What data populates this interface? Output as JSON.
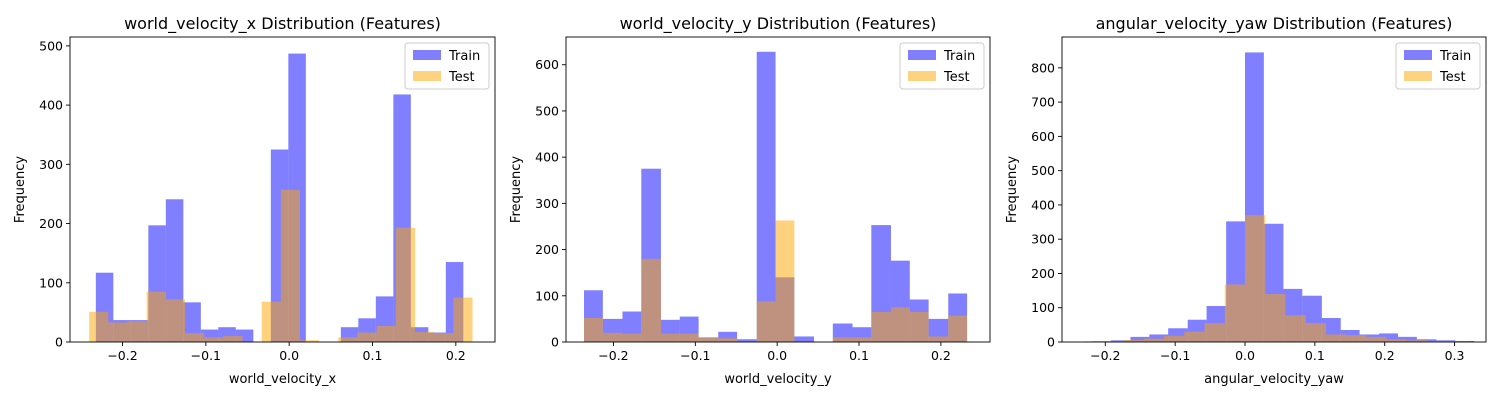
{
  "chart_data": [
    {
      "type": "histogram",
      "title": "world_velocity_x Distribution (Features)",
      "xlabel": "world_velocity_x",
      "ylabel": "Frequency",
      "xlim": [
        -0.263,
        0.247
      ],
      "ylim": [
        0,
        515
      ],
      "xticks": [
        -0.2,
        -0.1,
        0.0,
        0.1,
        0.2
      ],
      "yticks": [
        0,
        100,
        200,
        300,
        400,
        500
      ],
      "xtick_labels": [
        "−0.2",
        "−0.1",
        "0.0",
        "0.1",
        "0.2"
      ],
      "ytick_labels": [
        "0",
        "100",
        "200",
        "300",
        "400",
        "500"
      ],
      "legend_position": "top-right",
      "series": [
        {
          "name": "Train",
          "color": "#0000ff",
          "alpha": 0.5,
          "bins": [
            [
              -0.232,
              -0.211,
              117
            ],
            [
              -0.211,
              -0.19,
              37
            ],
            [
              -0.19,
              -0.169,
              37
            ],
            [
              -0.169,
              -0.148,
              197
            ],
            [
              -0.148,
              -0.127,
              241
            ],
            [
              -0.127,
              -0.106,
              67
            ],
            [
              -0.106,
              -0.085,
              21
            ],
            [
              -0.085,
              -0.064,
              25
            ],
            [
              -0.064,
              -0.043,
              21
            ],
            [
              -0.043,
              -0.022,
              0
            ],
            [
              -0.022,
              -0.001,
              325
            ],
            [
              -0.001,
              0.02,
              487
            ],
            [
              0.02,
              0.041,
              0
            ],
            [
              0.041,
              0.062,
              0
            ],
            [
              0.062,
              0.083,
              25
            ],
            [
              0.083,
              0.104,
              40
            ],
            [
              0.104,
              0.125,
              77
            ],
            [
              0.125,
              0.146,
              418
            ],
            [
              0.146,
              0.167,
              25
            ],
            [
              0.167,
              0.188,
              16
            ],
            [
              0.188,
              0.209,
              135
            ]
          ]
        },
        {
          "name": "Test",
          "color": "#ffa500",
          "alpha": 0.5,
          "bins": [
            [
              -0.24,
              -0.217,
              51
            ],
            [
              -0.217,
              -0.194,
              33
            ],
            [
              -0.194,
              -0.171,
              35
            ],
            [
              -0.171,
              -0.148,
              85
            ],
            [
              -0.148,
              -0.125,
              72
            ],
            [
              -0.125,
              -0.102,
              15
            ],
            [
              -0.102,
              -0.079,
              8
            ],
            [
              -0.079,
              -0.056,
              10
            ],
            [
              -0.056,
              -0.033,
              0
            ],
            [
              -0.033,
              -0.01,
              68
            ],
            [
              -0.01,
              0.013,
              257
            ],
            [
              0.013,
              0.036,
              3
            ],
            [
              0.036,
              0.059,
              0
            ],
            [
              0.059,
              0.082,
              8
            ],
            [
              0.082,
              0.105,
              16
            ],
            [
              0.105,
              0.128,
              27
            ],
            [
              0.128,
              0.151,
              193
            ],
            [
              0.151,
              0.174,
              17
            ],
            [
              0.174,
              0.197,
              15
            ],
            [
              0.197,
              0.22,
              75
            ]
          ]
        }
      ]
    },
    {
      "type": "histogram",
      "title": "world_velocity_y Distribution (Features)",
      "xlabel": "world_velocity_y",
      "ylabel": "Frequency",
      "xlim": [
        -0.258,
        0.26
      ],
      "ylim": [
        0,
        660
      ],
      "xticks": [
        -0.2,
        -0.1,
        0.0,
        0.1,
        0.2
      ],
      "yticks": [
        0,
        100,
        200,
        300,
        400,
        500,
        600
      ],
      "xtick_labels": [
        "−0.2",
        "−0.1",
        "0.0",
        "0.1",
        "0.2"
      ],
      "ytick_labels": [
        "0",
        "100",
        "200",
        "300",
        "400",
        "500",
        "600"
      ],
      "legend_position": "top-right",
      "series": [
        {
          "name": "Train",
          "color": "#0000ff",
          "alpha": 0.5,
          "bins": [
            [
              -0.236,
              -0.213,
              112
            ],
            [
              -0.213,
              -0.189,
              50
            ],
            [
              -0.189,
              -0.166,
              66
            ],
            [
              -0.166,
              -0.142,
              375
            ],
            [
              -0.142,
              -0.119,
              48
            ],
            [
              -0.119,
              -0.096,
              55
            ],
            [
              -0.096,
              -0.072,
              10
            ],
            [
              -0.072,
              -0.049,
              22
            ],
            [
              -0.049,
              -0.025,
              6
            ],
            [
              -0.025,
              -0.002,
              628
            ],
            [
              -0.002,
              0.021,
              140
            ],
            [
              0.021,
              0.045,
              12
            ],
            [
              0.045,
              0.068,
              0
            ],
            [
              0.068,
              0.092,
              40
            ],
            [
              0.092,
              0.115,
              32
            ],
            [
              0.115,
              0.139,
              253
            ],
            [
              0.139,
              0.162,
              176
            ],
            [
              0.162,
              0.185,
              92
            ],
            [
              0.185,
              0.209,
              50
            ],
            [
              0.209,
              0.232,
              105
            ]
          ]
        },
        {
          "name": "Test",
          "color": "#ffa500",
          "alpha": 0.5,
          "bins": [
            [
              -0.236,
              -0.213,
              52
            ],
            [
              -0.213,
              -0.189,
              20
            ],
            [
              -0.189,
              -0.166,
              18
            ],
            [
              -0.166,
              -0.142,
              180
            ],
            [
              -0.142,
              -0.119,
              18
            ],
            [
              -0.119,
              -0.096,
              18
            ],
            [
              -0.096,
              -0.072,
              10
            ],
            [
              -0.072,
              -0.049,
              8
            ],
            [
              -0.049,
              -0.025,
              0
            ],
            [
              -0.025,
              -0.002,
              88
            ],
            [
              -0.002,
              0.021,
              263
            ],
            [
              0.021,
              0.045,
              0
            ],
            [
              0.045,
              0.068,
              0
            ],
            [
              0.068,
              0.092,
              10
            ],
            [
              0.092,
              0.115,
              10
            ],
            [
              0.115,
              0.139,
              65
            ],
            [
              0.139,
              0.162,
              75
            ],
            [
              0.162,
              0.185,
              65
            ],
            [
              0.185,
              0.209,
              12
            ],
            [
              0.209,
              0.232,
              57
            ]
          ]
        }
      ]
    },
    {
      "type": "histogram",
      "title": "angular_velocity_yaw Distribution (Features)",
      "xlabel": "angular_velocity_yaw",
      "ylabel": "Frequency",
      "xlim": [
        -0.262,
        0.345
      ],
      "ylim": [
        0,
        890
      ],
      "xticks": [
        -0.2,
        -0.1,
        0.0,
        0.1,
        0.2,
        0.3
      ],
      "yticks": [
        0,
        100,
        200,
        300,
        400,
        500,
        600,
        700,
        800
      ],
      "xtick_labels": [
        "−0.2",
        "−0.1",
        "0.0",
        "0.1",
        "0.2",
        "0.3"
      ],
      "ytick_labels": [
        "0",
        "100",
        "200",
        "300",
        "400",
        "500",
        "600",
        "700",
        "800"
      ],
      "legend_position": "top-right",
      "series": [
        {
          "name": "Train",
          "color": "#0000ff",
          "alpha": 0.5,
          "bins": [
            [
              -0.219,
              -0.192,
              2
            ],
            [
              -0.192,
              -0.164,
              5
            ],
            [
              -0.164,
              -0.137,
              15
            ],
            [
              -0.137,
              -0.11,
              22
            ],
            [
              -0.11,
              -0.082,
              40
            ],
            [
              -0.082,
              -0.055,
              65
            ],
            [
              -0.055,
              -0.027,
              105
            ],
            [
              -0.027,
              0.0,
              352
            ],
            [
              0.0,
              0.027,
              845
            ],
            [
              0.027,
              0.055,
              345
            ],
            [
              0.055,
              0.082,
              155
            ],
            [
              0.082,
              0.11,
              135
            ],
            [
              0.11,
              0.137,
              70
            ],
            [
              0.137,
              0.164,
              35
            ],
            [
              0.164,
              0.192,
              22
            ],
            [
              0.192,
              0.219,
              25
            ],
            [
              0.219,
              0.246,
              15
            ],
            [
              0.246,
              0.274,
              8
            ],
            [
              0.274,
              0.301,
              5
            ],
            [
              0.301,
              0.328,
              3
            ]
          ]
        },
        {
          "name": "Test",
          "color": "#ffa500",
          "alpha": 0.5,
          "bins": [
            [
              -0.232,
              -0.203,
              2
            ],
            [
              -0.203,
              -0.174,
              3
            ],
            [
              -0.174,
              -0.145,
              6
            ],
            [
              -0.145,
              -0.116,
              10
            ],
            [
              -0.116,
              -0.087,
              18
            ],
            [
              -0.087,
              -0.058,
              30
            ],
            [
              -0.058,
              -0.029,
              55
            ],
            [
              -0.029,
              0.0,
              168
            ],
            [
              0.0,
              0.029,
              370
            ],
            [
              0.029,
              0.058,
              140
            ],
            [
              0.058,
              0.087,
              78
            ],
            [
              0.087,
              0.116,
              55
            ],
            [
              0.116,
              0.145,
              22
            ],
            [
              0.145,
              0.174,
              20
            ],
            [
              0.174,
              0.203,
              15
            ],
            [
              0.203,
              0.232,
              8
            ],
            [
              0.232,
              0.261,
              5
            ],
            [
              0.261,
              0.29,
              3
            ],
            [
              0.29,
              0.319,
              3
            ]
          ]
        }
      ]
    }
  ]
}
